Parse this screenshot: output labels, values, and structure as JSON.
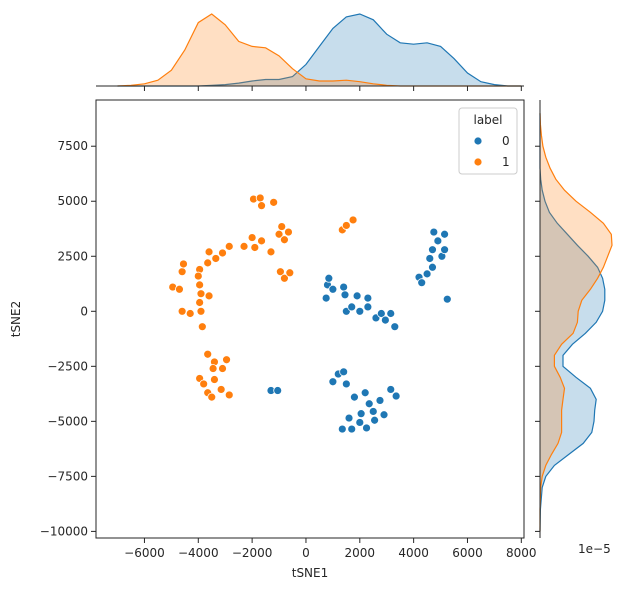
{
  "chart_data": {
    "type": "scatter",
    "xlabel": "tSNE1",
    "ylabel": "tSNE2",
    "xlim": [
      -7800,
      8100
    ],
    "ylim": [
      -10300,
      9600
    ],
    "xticks": [
      -6000,
      -4000,
      -2000,
      0,
      2000,
      4000,
      6000,
      8000
    ],
    "xtick_labels": [
      "−6000",
      "−4000",
      "−2000",
      "0",
      "2000",
      "4000",
      "6000",
      "8000"
    ],
    "yticks": [
      -10000,
      -7500,
      -5000,
      -2500,
      0,
      2500,
      5000,
      7500
    ],
    "ytick_labels": [
      "−10000",
      "−7500",
      "−5000",
      "−2500",
      "0",
      "2500",
      "5000",
      "7500"
    ],
    "marginal_x_label": "",
    "marginal_y_scale_label": "1e−5",
    "legend": {
      "title": "label",
      "placement": "top-right",
      "entries": [
        "0",
        "1"
      ]
    },
    "series": [
      {
        "name": "0",
        "color": "#1f77b4",
        "fill": "#c6d8ea",
        "points": [
          [
            750,
            600
          ],
          [
            800,
            1200
          ],
          [
            850,
            1500
          ],
          [
            1000,
            1000
          ],
          [
            1400,
            1100
          ],
          [
            1450,
            750
          ],
          [
            1500,
            0
          ],
          [
            1700,
            200
          ],
          [
            1900,
            700
          ],
          [
            2000,
            0
          ],
          [
            2300,
            200
          ],
          [
            2300,
            600
          ],
          [
            2600,
            -300
          ],
          [
            2800,
            -100
          ],
          [
            2950,
            -400
          ],
          [
            3150,
            -100
          ],
          [
            3300,
            -700
          ],
          [
            4200,
            1550
          ],
          [
            4300,
            1300
          ],
          [
            4500,
            1700
          ],
          [
            4600,
            2400
          ],
          [
            4700,
            2000
          ],
          [
            4700,
            2800
          ],
          [
            4750,
            3600
          ],
          [
            4900,
            3200
          ],
          [
            5050,
            2500
          ],
          [
            5150,
            3500
          ],
          [
            5150,
            2800
          ],
          [
            5250,
            550
          ],
          [
            1000,
            -3200
          ],
          [
            1200,
            -2850
          ],
          [
            1400,
            -2750
          ],
          [
            1500,
            -3300
          ],
          [
            1800,
            -3900
          ],
          [
            2200,
            -3700
          ],
          [
            2350,
            -4200
          ],
          [
            2500,
            -4550
          ],
          [
            2750,
            -4050
          ],
          [
            3150,
            -3550
          ],
          [
            3350,
            -3850
          ],
          [
            1600,
            -4850
          ],
          [
            2050,
            -4650
          ],
          [
            2550,
            -4950
          ],
          [
            2900,
            -4700
          ],
          [
            1350,
            -5350
          ],
          [
            1700,
            -5350
          ],
          [
            2000,
            -5050
          ],
          [
            2250,
            -5300
          ],
          [
            -1300,
            -3600
          ],
          [
            -1050,
            -3600
          ]
        ]
      },
      {
        "name": "1",
        "color": "#ff7f0e",
        "fill": "#fdd5b4",
        "points": [
          [
            -4950,
            1100
          ],
          [
            -4700,
            1000
          ],
          [
            -4600,
            1800
          ],
          [
            -4550,
            2150
          ],
          [
            -4600,
            0
          ],
          [
            -4300,
            -100
          ],
          [
            -3950,
            1900
          ],
          [
            -4000,
            1600
          ],
          [
            -3950,
            1200
          ],
          [
            -3900,
            800
          ],
          [
            -3950,
            400
          ],
          [
            -3900,
            0
          ],
          [
            -3850,
            -700
          ],
          [
            -3600,
            700
          ],
          [
            -3650,
            2200
          ],
          [
            -3600,
            2700
          ],
          [
            -3350,
            2400
          ],
          [
            -3100,
            2650
          ],
          [
            -2850,
            2950
          ],
          [
            -2300,
            2950
          ],
          [
            -2000,
            3350
          ],
          [
            -1900,
            2900
          ],
          [
            -1650,
            3200
          ],
          [
            -1300,
            2700
          ],
          [
            -1000,
            3500
          ],
          [
            -900,
            3850
          ],
          [
            -800,
            3250
          ],
          [
            -650,
            3600
          ],
          [
            -950,
            1800
          ],
          [
            -800,
            1500
          ],
          [
            -600,
            1750
          ],
          [
            -1950,
            5100
          ],
          [
            -1700,
            5150
          ],
          [
            -1650,
            4800
          ],
          [
            -1200,
            4950
          ],
          [
            1350,
            3700
          ],
          [
            1500,
            3900
          ],
          [
            1750,
            4150
          ],
          [
            -3650,
            -1950
          ],
          [
            -3400,
            -2300
          ],
          [
            -3450,
            -2600
          ],
          [
            -3100,
            -2600
          ],
          [
            -2950,
            -2200
          ],
          [
            -3950,
            -3050
          ],
          [
            -3800,
            -3300
          ],
          [
            -3650,
            -3700
          ],
          [
            -3500,
            -3900
          ],
          [
            -3400,
            -3100
          ],
          [
            -3150,
            -3550
          ],
          [
            -2850,
            -3800
          ]
        ]
      }
    ],
    "kde_top": {
      "x": [
        -7000,
        -6500,
        -6000,
        -5500,
        -5000,
        -4500,
        -4000,
        -3500,
        -3000,
        -2500,
        -2000,
        -1500,
        -1000,
        -500,
        0,
        500,
        1000,
        1500,
        2000,
        2500,
        3000,
        3500,
        4000,
        4500,
        5000,
        5500,
        6000,
        6500,
        7000,
        7500,
        8000
      ],
      "series_0": [
        0,
        0,
        0,
        0,
        0,
        0,
        0,
        0.01,
        0.02,
        0.04,
        0.07,
        0.09,
        0.09,
        0.13,
        0.3,
        0.55,
        0.8,
        0.96,
        1.0,
        0.92,
        0.72,
        0.6,
        0.58,
        0.6,
        0.55,
        0.38,
        0.18,
        0.06,
        0.02,
        0,
        0
      ],
      "series_1": [
        0,
        0.01,
        0.03,
        0.08,
        0.22,
        0.5,
        0.88,
        1.0,
        0.85,
        0.62,
        0.55,
        0.53,
        0.42,
        0.24,
        0.1,
        0.07,
        0.07,
        0.08,
        0.06,
        0.03,
        0.01,
        0,
        0,
        0,
        0,
        0,
        0,
        0,
        0,
        0,
        0
      ]
    },
    "kde_right": {
      "y": [
        -10000,
        -9000,
        -8000,
        -7500,
        -7000,
        -6500,
        -6000,
        -5500,
        -5000,
        -4500,
        -4000,
        -3500,
        -3000,
        -2500,
        -2000,
        -1500,
        -1000,
        -500,
        0,
        500,
        1000,
        1500,
        2000,
        2500,
        3000,
        3500,
        4000,
        4500,
        5000,
        5500,
        6000,
        6500,
        7000,
        7500,
        8000,
        8500,
        9000
      ],
      "series_0": [
        0,
        0.005,
        0.03,
        0.08,
        0.2,
        0.4,
        0.6,
        0.72,
        0.75,
        0.76,
        0.78,
        0.7,
        0.5,
        0.32,
        0.32,
        0.45,
        0.63,
        0.78,
        0.87,
        0.9,
        0.9,
        0.87,
        0.8,
        0.67,
        0.52,
        0.38,
        0.24,
        0.13,
        0.07,
        0.03,
        0.01,
        0,
        0,
        0,
        0,
        0,
        0
      ],
      "series_1": [
        0,
        0,
        0.01,
        0.03,
        0.08,
        0.16,
        0.25,
        0.3,
        0.3,
        0.3,
        0.32,
        0.34,
        0.28,
        0.2,
        0.2,
        0.3,
        0.46,
        0.52,
        0.53,
        0.58,
        0.7,
        0.8,
        0.88,
        0.94,
        1.0,
        0.99,
        0.88,
        0.7,
        0.5,
        0.34,
        0.22,
        0.14,
        0.08,
        0.04,
        0.02,
        0.005,
        0
      ]
    }
  }
}
